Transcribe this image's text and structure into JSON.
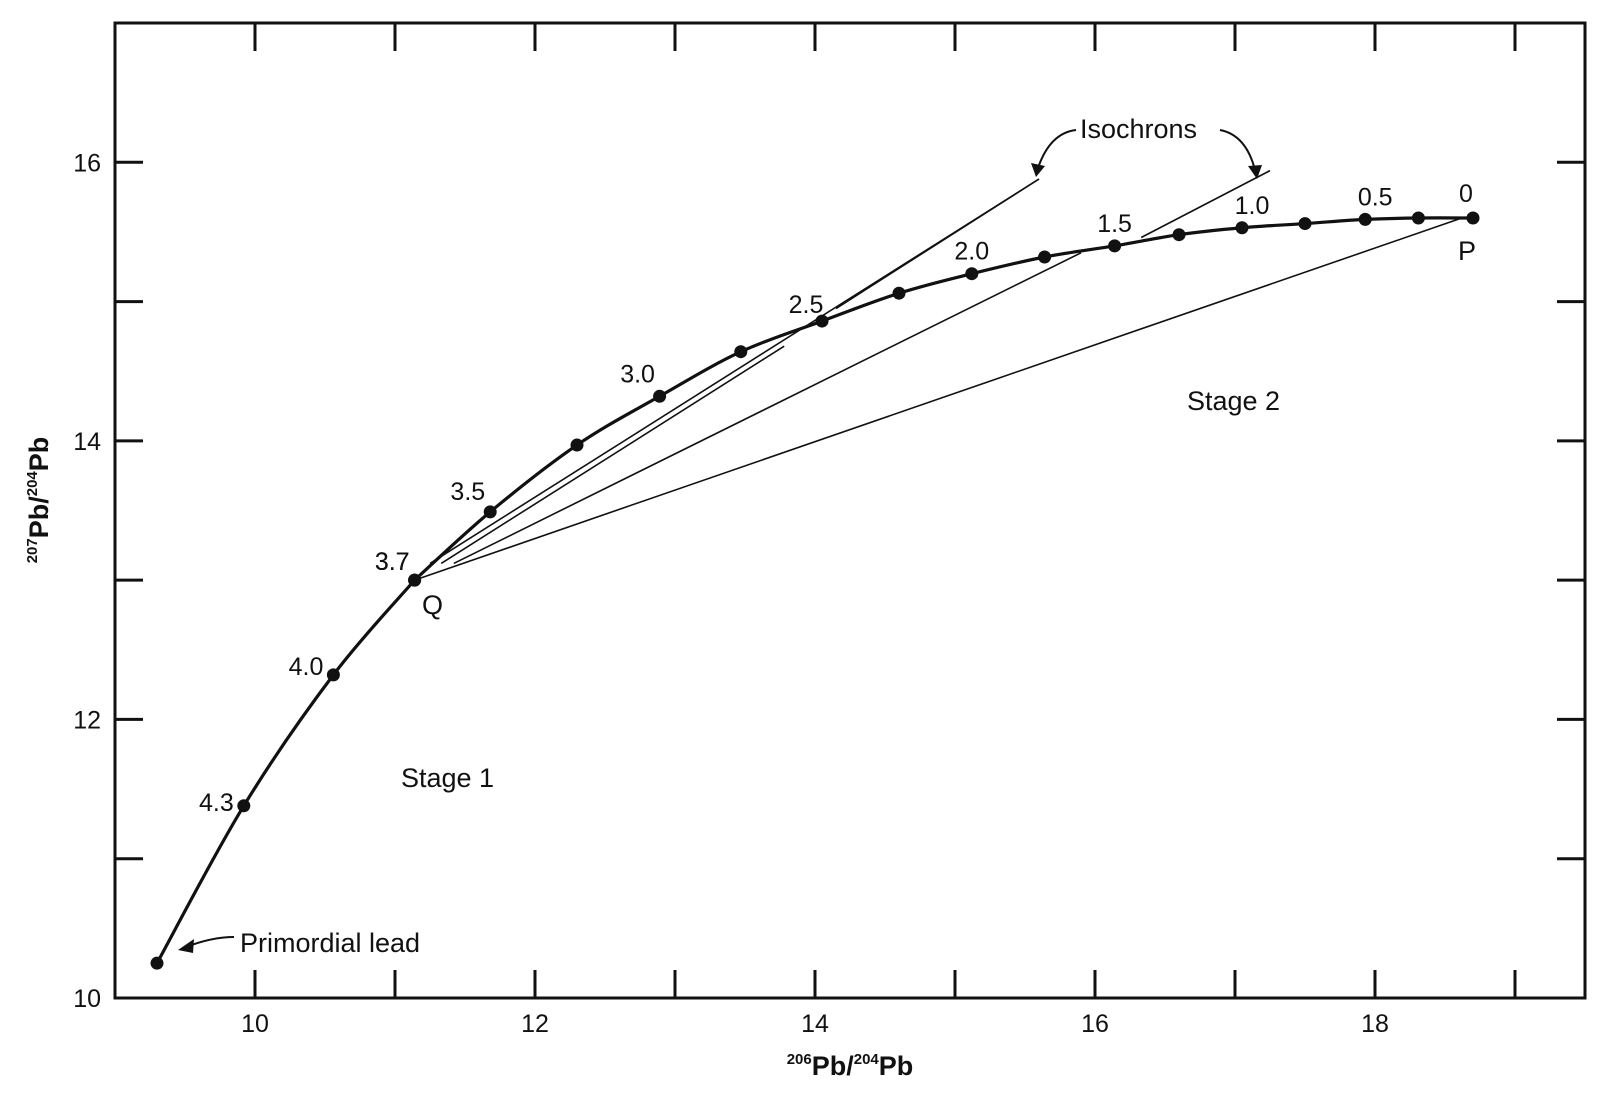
{
  "chart_data": {
    "type": "line",
    "xlabel": {
      "sup1": "206",
      "base1": "Pb/",
      "sup2": "204",
      "base2": "Pb"
    },
    "ylabel": {
      "sup1": "207",
      "base1": "Pb/",
      "sup2": "204",
      "base2": "Pb"
    },
    "xlim": [
      9.0,
      19.5
    ],
    "ylim": [
      10,
      17
    ],
    "x_ticks": [
      10,
      12,
      14,
      16,
      18
    ],
    "x_minor_ticks": [
      11,
      13,
      15,
      17,
      19
    ],
    "y_ticks": [
      10,
      12,
      14,
      16
    ],
    "y_minor_ticks": [
      11,
      13,
      15
    ],
    "series": [
      {
        "points": [
          {
            "age": "",
            "x": 9.3,
            "y": 10.25
          },
          {
            "age": "4.3",
            "x": 9.92,
            "y": 11.38
          },
          {
            "age": "4.0",
            "x": 10.56,
            "y": 12.32
          },
          {
            "age": "3.7",
            "x": 11.14,
            "y": 13.0
          }
        ]
      },
      {
        "points": [
          {
            "age": "3.7",
            "x": 11.14,
            "y": 13.0
          },
          {
            "age": "3.5",
            "x": 11.68,
            "y": 13.49
          },
          {
            "age": "",
            "x": 12.3,
            "y": 13.97
          },
          {
            "age": "3.0",
            "x": 12.89,
            "y": 14.32
          },
          {
            "age": "",
            "x": 13.47,
            "y": 14.64
          },
          {
            "age": "2.5",
            "x": 14.05,
            "y": 14.86
          },
          {
            "age": "",
            "x": 14.6,
            "y": 15.06
          },
          {
            "age": "2.0",
            "x": 15.12,
            "y": 15.2
          },
          {
            "age": "",
            "x": 15.64,
            "y": 15.32
          },
          {
            "age": "1.5",
            "x": 16.14,
            "y": 15.4
          },
          {
            "age": "",
            "x": 16.6,
            "y": 15.48
          },
          {
            "age": "1.0",
            "x": 17.05,
            "y": 15.53
          },
          {
            "age": "",
            "x": 17.5,
            "y": 15.56
          },
          {
            "age": "0.5",
            "x": 17.93,
            "y": 15.59
          },
          {
            "age": "",
            "x": 18.31,
            "y": 15.6
          },
          {
            "age": "0",
            "x": 18.7,
            "y": 15.6
          }
        ]
      }
    ],
    "isochrons": [
      {
        "x": [
          11.25,
          15.6
        ],
        "y": [
          13.12,
          15.88
        ]
      },
      {
        "x": [
          11.33,
          13.78
        ],
        "y": [
          13.12,
          14.68
        ]
      },
      {
        "x": [
          11.42,
          15.9
        ],
        "y": [
          13.12,
          15.35
        ]
      },
      {
        "x": [
          11.14,
          18.62
        ],
        "y": [
          13.0,
          15.6
        ]
      },
      {
        "x": [
          14.15,
          15.6
        ],
        "y": [
          14.95,
          15.88
        ]
      },
      {
        "x": [
          16.33,
          17.25
        ],
        "y": [
          15.46,
          15.94
        ]
      }
    ],
    "annotations": {
      "point_Q": "Q",
      "point_P": "P",
      "stage1": "Stage 1",
      "stage2": "Stage 2",
      "primordial": "Primordial lead",
      "isochrons": "Isochrons"
    },
    "grid": false,
    "legend": false
  }
}
